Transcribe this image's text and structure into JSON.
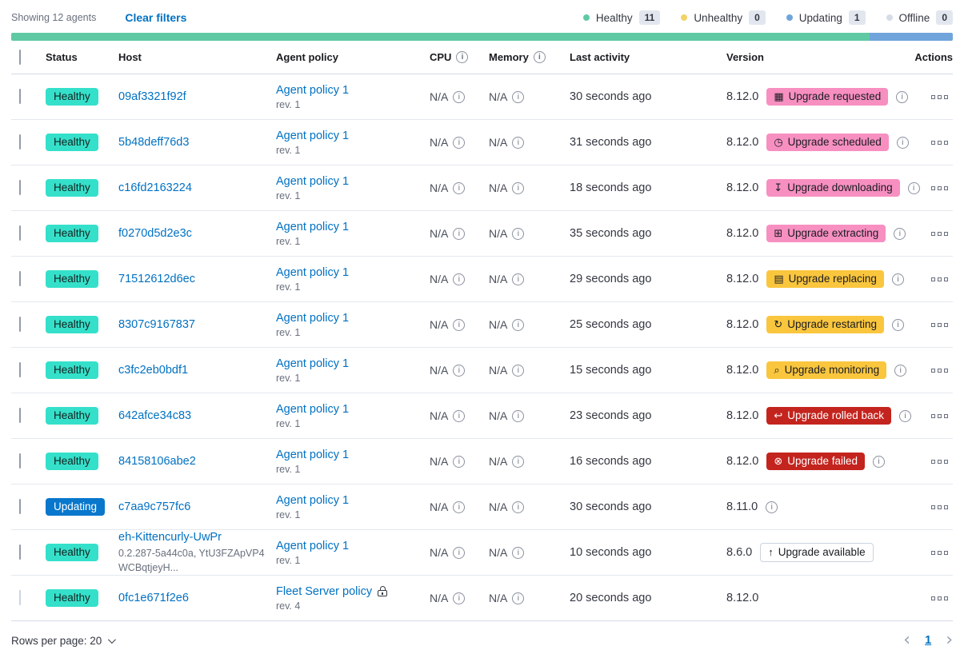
{
  "toolbar": {
    "showing": "Showing 12 agents",
    "clear_filters": "Clear filters"
  },
  "legend": [
    {
      "label": "Healthy",
      "count": "11",
      "color": "#5FC9A4"
    },
    {
      "label": "Unhealthy",
      "count": "0",
      "color": "#F1D368"
    },
    {
      "label": "Updating",
      "count": "1",
      "color": "#70A5DB"
    },
    {
      "label": "Offline",
      "count": "0",
      "color": "#D6DCE7"
    }
  ],
  "health_bar": [
    {
      "color": "#5FC9A4",
      "fraction": 0.912
    },
    {
      "color": "#70A5DB",
      "fraction": 0.088
    }
  ],
  "columns": [
    {
      "label": "Status"
    },
    {
      "label": "Host"
    },
    {
      "label": "Agent policy"
    },
    {
      "label": "CPU",
      "info": true
    },
    {
      "label": "Memory",
      "info": true
    },
    {
      "label": "Last activity"
    },
    {
      "label": "Version"
    },
    {
      "label": "Actions",
      "align": "right"
    }
  ],
  "rows": [
    {
      "status": {
        "label": "Healthy",
        "type": "healthy"
      },
      "host": {
        "name": "09af3321f92f"
      },
      "policy": {
        "name": "Agent policy 1",
        "rev": "rev. 1"
      },
      "cpu": "N/A",
      "memory": "N/A",
      "last_activity": "30 seconds ago",
      "version": "8.12.0",
      "badge": {
        "label": "Upgrade requested",
        "icon": "calendar-icon",
        "type": "accent"
      },
      "version_info": true
    },
    {
      "status": {
        "label": "Healthy",
        "type": "healthy"
      },
      "host": {
        "name": "5b48deff76d3"
      },
      "policy": {
        "name": "Agent policy 1",
        "rev": "rev. 1"
      },
      "cpu": "N/A",
      "memory": "N/A",
      "last_activity": "31 seconds ago",
      "version": "8.12.0",
      "badge": {
        "label": "Upgrade scheduled",
        "icon": "clock-icon",
        "type": "accent"
      },
      "version_info": true
    },
    {
      "status": {
        "label": "Healthy",
        "type": "healthy"
      },
      "host": {
        "name": "c16fd2163224"
      },
      "policy": {
        "name": "Agent policy 1",
        "rev": "rev. 1"
      },
      "cpu": "N/A",
      "memory": "N/A",
      "last_activity": "18 seconds ago",
      "version": "8.12.0",
      "badge": {
        "label": "Upgrade downloading",
        "icon": "download-icon",
        "type": "accent"
      },
      "version_info": true
    },
    {
      "status": {
        "label": "Healthy",
        "type": "healthy"
      },
      "host": {
        "name": "f0270d5d2e3c"
      },
      "policy": {
        "name": "Agent policy 1",
        "rev": "rev. 1"
      },
      "cpu": "N/A",
      "memory": "N/A",
      "last_activity": "35 seconds ago",
      "version": "8.12.0",
      "badge": {
        "label": "Upgrade extracting",
        "icon": "package-icon",
        "type": "accent"
      },
      "version_info": true
    },
    {
      "status": {
        "label": "Healthy",
        "type": "healthy"
      },
      "host": {
        "name": "71512612d6ec"
      },
      "policy": {
        "name": "Agent policy 1",
        "rev": "rev. 1"
      },
      "cpu": "N/A",
      "memory": "N/A",
      "last_activity": "29 seconds ago",
      "version": "8.12.0",
      "badge": {
        "label": "Upgrade replacing",
        "icon": "document-icon",
        "type": "warning"
      },
      "version_info": true
    },
    {
      "status": {
        "label": "Healthy",
        "type": "healthy"
      },
      "host": {
        "name": "8307c9167837"
      },
      "policy": {
        "name": "Agent policy 1",
        "rev": "rev. 1"
      },
      "cpu": "N/A",
      "memory": "N/A",
      "last_activity": "25 seconds ago",
      "version": "8.12.0",
      "badge": {
        "label": "Upgrade restarting",
        "icon": "refresh-icon",
        "type": "warning"
      },
      "version_info": true
    },
    {
      "status": {
        "label": "Healthy",
        "type": "healthy"
      },
      "host": {
        "name": "c3fc2eb0bdf1"
      },
      "policy": {
        "name": "Agent policy 1",
        "rev": "rev. 1"
      },
      "cpu": "N/A",
      "memory": "N/A",
      "last_activity": "15 seconds ago",
      "version": "8.12.0",
      "badge": {
        "label": "Upgrade monitoring",
        "icon": "inspect-icon",
        "type": "warning"
      },
      "version_info": true
    },
    {
      "status": {
        "label": "Healthy",
        "type": "healthy"
      },
      "host": {
        "name": "642afce34c83"
      },
      "policy": {
        "name": "Agent policy 1",
        "rev": "rev. 1"
      },
      "cpu": "N/A",
      "memory": "N/A",
      "last_activity": "23 seconds ago",
      "version": "8.12.0",
      "badge": {
        "label": "Upgrade rolled back",
        "icon": "return-icon",
        "type": "danger"
      },
      "version_info": true
    },
    {
      "status": {
        "label": "Healthy",
        "type": "healthy"
      },
      "host": {
        "name": "84158106abe2"
      },
      "policy": {
        "name": "Agent policy 1",
        "rev": "rev. 1"
      },
      "cpu": "N/A",
      "memory": "N/A",
      "last_activity": "16 seconds ago",
      "version": "8.12.0",
      "badge": {
        "label": "Upgrade failed",
        "icon": "error-icon",
        "type": "danger"
      },
      "version_info": true
    },
    {
      "status": {
        "label": "Updating",
        "type": "updating"
      },
      "host": {
        "name": "c7aa9c757fc6"
      },
      "policy": {
        "name": "Agent policy 1",
        "rev": "rev. 1"
      },
      "cpu": "N/A",
      "memory": "N/A",
      "last_activity": "30 seconds ago",
      "version": "8.11.0",
      "badge": null,
      "version_info": true
    },
    {
      "status": {
        "label": "Healthy",
        "type": "healthy"
      },
      "host": {
        "name": "eh-Kittencurly-UwPr",
        "sub": "0.2.287-5a44c0a, YtU3FZApVP4WCBqtjeyH..."
      },
      "policy": {
        "name": "Agent policy 1",
        "rev": "rev. 1"
      },
      "cpu": "N/A",
      "memory": "N/A",
      "last_activity": "10 seconds ago",
      "version": "8.6.0",
      "badge": {
        "label": "Upgrade available",
        "icon": "upgrade-arrow-icon",
        "type": "hollow"
      },
      "version_info": false
    },
    {
      "status": {
        "label": "Healthy",
        "type": "healthy"
      },
      "checkbox_disabled": true,
      "host": {
        "name": "0fc1e671f2e6"
      },
      "policy": {
        "name": "Fleet Server policy",
        "rev": "rev. 4",
        "locked": true
      },
      "cpu": "N/A",
      "memory": "N/A",
      "last_activity": "20 seconds ago",
      "version": "8.12.0",
      "badge": null,
      "version_info": false
    }
  ],
  "footer": {
    "rows_per_page": "Rows per page: 20",
    "page": "1"
  }
}
